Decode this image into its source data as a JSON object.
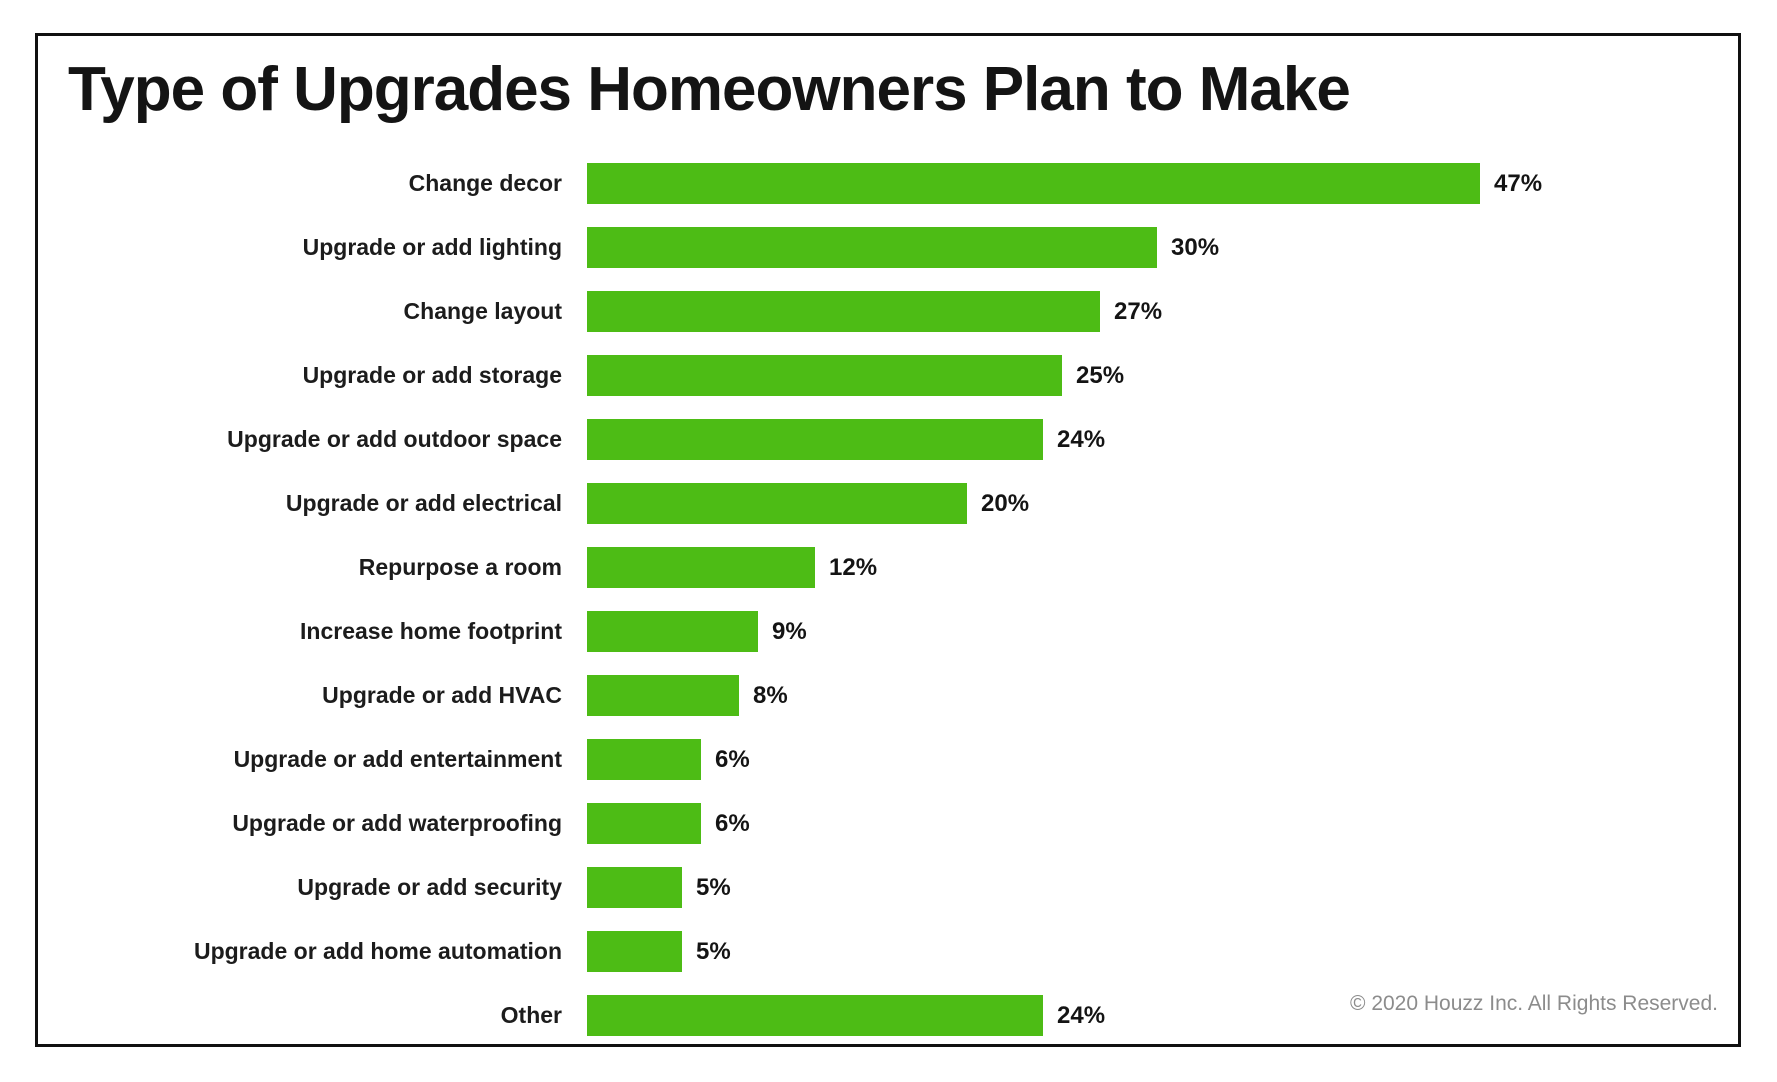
{
  "title": "Type of Upgrades Homeowners Plan to Make",
  "footer": {
    "copyright": "© 2020 Houzz Inc. All Rights Reserved."
  },
  "colors": {
    "bar": "#4dbc15",
    "title_text": "#141414",
    "label_text": "#1c1c1c",
    "footer_text": "#8c8c8c",
    "frame_border": "#101010"
  },
  "chart_data": {
    "type": "bar",
    "orientation": "horizontal",
    "title": "Type of Upgrades Homeowners Plan to Make",
    "categories": [
      "Change decor",
      "Upgrade or add lighting",
      "Change layout",
      "Upgrade or add storage",
      "Upgrade or add outdoor space",
      "Upgrade or add electrical",
      "Repurpose a room",
      "Increase home footprint",
      "Upgrade or add HVAC",
      "Upgrade or add entertainment",
      "Upgrade or add waterproofing",
      "Upgrade or add security",
      "Upgrade or add home automation",
      "Other"
    ],
    "values": [
      47,
      30,
      27,
      25,
      24,
      20,
      12,
      9,
      8,
      6,
      6,
      5,
      5,
      24
    ],
    "display_values": [
      "47%",
      "30%",
      "27%",
      "25%",
      "24%",
      "20%",
      "12%",
      "9%",
      "8%",
      "6%",
      "6%",
      "5%",
      "5%",
      "24%"
    ],
    "xlabel": "",
    "ylabel": "",
    "xlim": [
      0,
      50
    ],
    "grid": false,
    "legend": false,
    "bar_color": "#4dbc15",
    "value_label_position": "end-of-bar"
  }
}
